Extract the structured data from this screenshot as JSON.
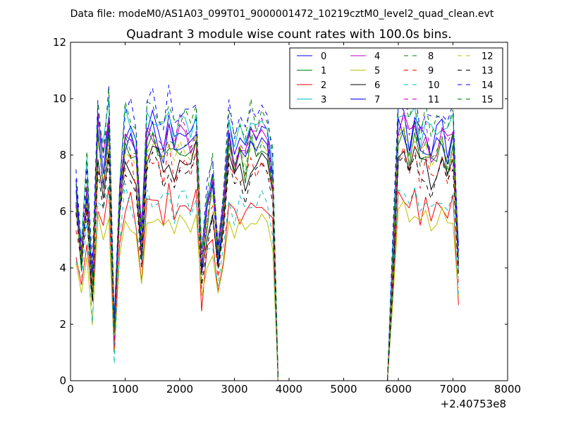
{
  "figure": {
    "suptitle": "Data file: modeM0/AS1A03_099T01_9000001472_10219cztM0_level2_quad_clean.evt"
  },
  "chart_data": {
    "type": "line",
    "title": "Quadrant 3 module wise count rates with 100.0s bins.",
    "xlabel": "",
    "ylabel": "",
    "xlim": [
      0,
      8000
    ],
    "ylim": [
      0,
      12
    ],
    "x_offset_label": "+2.40753e8",
    "xticks": [
      0,
      1000,
      2000,
      3000,
      4000,
      5000,
      6000,
      7000,
      8000
    ],
    "xtick_labels": [
      "0",
      "1000",
      "2000",
      "3000",
      "4000",
      "5000",
      "6000",
      "7000",
      "8000"
    ],
    "yticks": [
      0,
      2,
      4,
      6,
      8,
      10,
      12
    ],
    "ytick_labels": [
      "0",
      "2",
      "4",
      "6",
      "8",
      "10",
      "12"
    ],
    "grid": false,
    "legend_position": "top-right",
    "legend_columns": 4,
    "x": [
      100,
      200,
      300,
      400,
      500,
      600,
      700,
      800,
      900,
      1000,
      1100,
      1200,
      1300,
      1400,
      1500,
      1600,
      1700,
      1800,
      1900,
      2000,
      2100,
      2200,
      2300,
      2400,
      2500,
      2600,
      2700,
      2800,
      2900,
      3000,
      3100,
      3200,
      3300,
      3400,
      3500,
      3600,
      3700,
      3800,
      3900,
      4000,
      4100,
      4200,
      4300,
      4400,
      4500,
      4600,
      4700,
      4800,
      4900,
      5000,
      5100,
      5200,
      5300,
      5400,
      5500,
      5600,
      5700,
      5800,
      5900,
      6000,
      6100,
      6200,
      6300,
      6400,
      6500,
      6600,
      6700,
      6800,
      6900,
      7000,
      7100
    ],
    "base_profile": [
      6.6,
      4.7,
      7.2,
      3.4,
      9.2,
      7.8,
      9.5,
      1.6,
      6.8,
      9.0,
      8.8,
      8.2,
      5.1,
      9.0,
      9.2,
      8.9,
      8.5,
      9.3,
      8.4,
      9.0,
      8.8,
      8.6,
      9.3,
      4.3,
      6.3,
      7.2,
      4.6,
      6.1,
      9.1,
      8.1,
      8.7,
      8.2,
      9.0,
      8.7,
      8.9,
      8.8,
      7.5,
      0,
      0,
      0,
      0,
      0,
      0,
      0,
      0,
      0,
      0,
      0,
      0,
      0,
      0,
      0,
      0,
      0,
      0,
      0,
      0,
      0,
      4.4,
      9.3,
      9.5,
      8.7,
      9.2,
      8.5,
      9.0,
      8.3,
      8.6,
      9.1,
      8.4,
      8.8,
      4.3
    ],
    "series": [
      {
        "name": "0",
        "color": "#0000ff",
        "dash": "solid",
        "scale": 1.0
      },
      {
        "name": "1",
        "color": "#008000",
        "dash": "solid",
        "scale": 0.92
      },
      {
        "name": "2",
        "color": "#ff0000",
        "dash": "solid",
        "scale": 0.7
      },
      {
        "name": "3",
        "color": "#00bfbf",
        "dash": "solid",
        "scale": 1.03
      },
      {
        "name": "4",
        "color": "#bf00bf",
        "dash": "solid",
        "scale": 0.97
      },
      {
        "name": "5",
        "color": "#bfbf00",
        "dash": "solid",
        "scale": 0.62
      },
      {
        "name": "6",
        "color": "#000000",
        "dash": "solid",
        "scale": 0.87
      },
      {
        "name": "7",
        "color": "#0000ff",
        "dash": "solid",
        "scale": 0.95
      },
      {
        "name": "8",
        "color": "#008000",
        "dash": "dashed",
        "scale": 0.94
      },
      {
        "name": "9",
        "color": "#ff0000",
        "dash": "dashed",
        "scale": 0.86
      },
      {
        "name": "10",
        "color": "#00bfbf",
        "dash": "dashed",
        "scale": 0.72
      },
      {
        "name": "11",
        "color": "#bf00bf",
        "dash": "dashed",
        "scale": 0.99
      },
      {
        "name": "12",
        "color": "#bfbf00",
        "dash": "dashed",
        "scale": 0.9
      },
      {
        "name": "13",
        "color": "#000000",
        "dash": "dashed",
        "scale": 0.83
      },
      {
        "name": "14",
        "color": "#0000ff",
        "dash": "dashed",
        "scale": 1.08
      },
      {
        "name": "15",
        "color": "#008000",
        "dash": "dashed",
        "scale": 1.06
      }
    ]
  }
}
